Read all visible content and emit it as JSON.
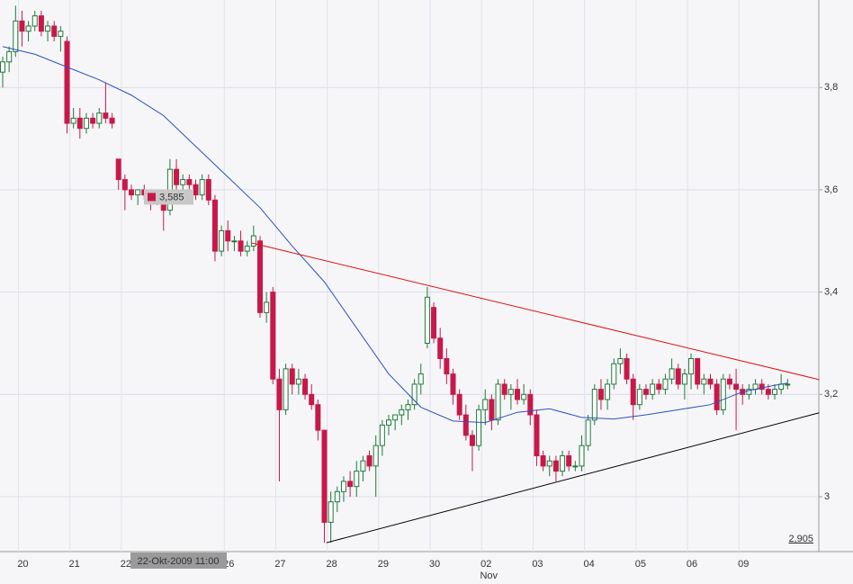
{
  "chart_data": {
    "type": "candlestick",
    "categories": [
      null,
      null,
      null,
      "20",
      null,
      null,
      null,
      null,
      null,
      null,
      null,
      "21",
      null,
      null,
      null,
      null,
      null,
      null,
      null,
      "22",
      null,
      null,
      null,
      null,
      null,
      null,
      null,
      null,
      null,
      null,
      null,
      null,
      null,
      null,
      null,
      "26",
      null,
      null,
      null,
      null,
      null,
      null,
      null,
      "27",
      null,
      null,
      null,
      null,
      null,
      null,
      null,
      "28",
      null,
      null,
      null,
      null,
      null,
      null,
      null,
      "29",
      null,
      null,
      null,
      null,
      null,
      null,
      null,
      "30",
      null,
      null,
      null,
      null,
      null,
      null,
      null,
      "02",
      null,
      null,
      null,
      null,
      null,
      null,
      null,
      "03",
      null,
      null,
      null,
      null,
      null,
      null,
      null,
      "04",
      null,
      null,
      null,
      null,
      null,
      null,
      null,
      "05",
      null,
      null,
      null,
      null,
      null,
      null,
      null,
      "06",
      null,
      null,
      null,
      null,
      null,
      null,
      null,
      "09",
      null,
      null,
      null,
      null,
      null,
      null,
      null
    ],
    "month_label": {
      "label": "Nov",
      "at": 75
    },
    "ohlc": [
      [
        3.83,
        3.86,
        3.8,
        3.85
      ],
      [
        3.85,
        3.88,
        3.83,
        3.87
      ],
      [
        3.87,
        3.96,
        3.86,
        3.93
      ],
      [
        3.93,
        3.95,
        3.88,
        3.91
      ],
      [
        3.91,
        3.93,
        3.89,
        3.92
      ],
      [
        3.92,
        3.95,
        3.91,
        3.94
      ],
      [
        3.94,
        3.95,
        3.9,
        3.91
      ],
      [
        3.91,
        3.93,
        3.89,
        3.92
      ],
      [
        3.92,
        3.93,
        3.89,
        3.9
      ],
      [
        3.9,
        3.92,
        3.87,
        3.91
      ],
      [
        3.89,
        3.9,
        3.71,
        3.73
      ],
      [
        3.73,
        3.76,
        3.72,
        3.74
      ],
      [
        3.74,
        3.76,
        3.7,
        3.72
      ],
      [
        3.72,
        3.75,
        3.71,
        3.74
      ],
      [
        3.74,
        3.75,
        3.72,
        3.73
      ],
      [
        3.73,
        3.76,
        3.72,
        3.75
      ],
      [
        3.75,
        3.81,
        3.73,
        3.74
      ],
      [
        3.74,
        3.75,
        3.72,
        3.73
      ],
      [
        3.66,
        3.66,
        3.6,
        3.62
      ],
      [
        3.62,
        3.63,
        3.56,
        3.6
      ],
      [
        3.6,
        3.61,
        3.58,
        3.59
      ],
      [
        3.59,
        3.6,
        3.57,
        3.6
      ],
      [
        3.6,
        3.61,
        3.58,
        3.59
      ],
      [
        3.59,
        3.6,
        3.56,
        3.58
      ],
      [
        3.58,
        3.59,
        3.57,
        3.58
      ],
      [
        3.58,
        3.59,
        3.52,
        3.56
      ],
      [
        3.56,
        3.66,
        3.55,
        3.64
      ],
      [
        3.64,
        3.66,
        3.6,
        3.61
      ],
      [
        3.61,
        3.63,
        3.59,
        3.62
      ],
      [
        3.62,
        3.63,
        3.6,
        3.61
      ],
      [
        3.61,
        3.62,
        3.58,
        3.59
      ],
      [
        3.59,
        3.63,
        3.58,
        3.62
      ],
      [
        3.62,
        3.63,
        3.57,
        3.58
      ],
      [
        3.58,
        3.59,
        3.46,
        3.48
      ],
      [
        3.48,
        3.53,
        3.47,
        3.52
      ],
      [
        3.52,
        3.54,
        3.48,
        3.5
      ],
      [
        3.5,
        3.51,
        3.48,
        3.5
      ],
      [
        3.5,
        3.52,
        3.47,
        3.48
      ],
      [
        3.48,
        3.5,
        3.47,
        3.49
      ],
      [
        3.49,
        3.53,
        3.48,
        3.51
      ],
      [
        3.5,
        3.51,
        3.35,
        3.36
      ],
      [
        3.36,
        3.4,
        3.34,
        3.38
      ],
      [
        3.4,
        3.41,
        3.22,
        3.23
      ],
      [
        3.23,
        3.25,
        3.03,
        3.17
      ],
      [
        3.17,
        3.26,
        3.16,
        3.25
      ],
      [
        3.25,
        3.26,
        3.2,
        3.22
      ],
      [
        3.22,
        3.25,
        3.2,
        3.23
      ],
      [
        3.23,
        3.24,
        3.19,
        3.2
      ],
      [
        3.2,
        3.22,
        3.17,
        3.18
      ],
      [
        3.18,
        3.19,
        3.11,
        3.13
      ],
      [
        3.13,
        3.13,
        2.91,
        2.95
      ],
      [
        2.95,
        3.01,
        2.91,
        2.99
      ],
      [
        2.99,
        3.02,
        2.97,
        3.01
      ],
      [
        3.01,
        3.04,
        2.99,
        3.03
      ],
      [
        3.03,
        3.05,
        3.0,
        3.02
      ],
      [
        3.02,
        3.07,
        3.0,
        3.05
      ],
      [
        3.05,
        3.08,
        3.03,
        3.07
      ],
      [
        3.08,
        3.09,
        3.05,
        3.06
      ],
      [
        3.06,
        3.12,
        3.0,
        3.1
      ],
      [
        3.1,
        3.15,
        3.08,
        3.14
      ],
      [
        3.14,
        3.16,
        3.12,
        3.15
      ],
      [
        3.15,
        3.16,
        3.13,
        3.16
      ],
      [
        3.16,
        3.18,
        3.14,
        3.17
      ],
      [
        3.17,
        3.19,
        3.15,
        3.18
      ],
      [
        3.18,
        3.23,
        3.17,
        3.22
      ],
      [
        3.22,
        3.26,
        3.2,
        3.24
      ],
      [
        3.3,
        3.41,
        3.29,
        3.39
      ],
      [
        3.37,
        3.38,
        3.3,
        3.31
      ],
      [
        3.31,
        3.33,
        3.25,
        3.27
      ],
      [
        3.27,
        3.29,
        3.22,
        3.24
      ],
      [
        3.24,
        3.25,
        3.18,
        3.2
      ],
      [
        3.2,
        3.21,
        3.15,
        3.16
      ],
      [
        3.16,
        3.18,
        3.11,
        3.12
      ],
      [
        3.12,
        3.13,
        3.05,
        3.1
      ],
      [
        3.1,
        3.18,
        3.09,
        3.17
      ],
      [
        3.17,
        3.21,
        3.14,
        3.19
      ],
      [
        3.19,
        3.2,
        3.13,
        3.15
      ],
      [
        3.15,
        3.23,
        3.14,
        3.22
      ],
      [
        3.22,
        3.23,
        3.19,
        3.2
      ],
      [
        3.2,
        3.22,
        3.17,
        3.21
      ],
      [
        3.21,
        3.23,
        3.18,
        3.19
      ],
      [
        3.19,
        3.22,
        3.18,
        3.2
      ],
      [
        3.2,
        3.21,
        3.14,
        3.16
      ],
      [
        3.16,
        3.17,
        3.06,
        3.08
      ],
      [
        3.08,
        3.09,
        3.05,
        3.06
      ],
      [
        3.06,
        3.08,
        3.04,
        3.07
      ],
      [
        3.07,
        3.08,
        3.03,
        3.05
      ],
      [
        3.05,
        3.09,
        3.04,
        3.08
      ],
      [
        3.08,
        3.09,
        3.05,
        3.06
      ],
      [
        3.06,
        3.07,
        3.05,
        3.06
      ],
      [
        3.06,
        3.12,
        3.05,
        3.1
      ],
      [
        3.1,
        3.16,
        3.09,
        3.15
      ],
      [
        3.15,
        3.22,
        3.14,
        3.21
      ],
      [
        3.21,
        3.23,
        3.17,
        3.19
      ],
      [
        3.19,
        3.23,
        3.17,
        3.22
      ],
      [
        3.22,
        3.27,
        3.21,
        3.26
      ],
      [
        3.26,
        3.29,
        3.24,
        3.27
      ],
      [
        3.27,
        3.28,
        3.22,
        3.23
      ],
      [
        3.23,
        3.24,
        3.15,
        3.18
      ],
      [
        3.18,
        3.22,
        3.17,
        3.21
      ],
      [
        3.21,
        3.22,
        3.19,
        3.2
      ],
      [
        3.2,
        3.23,
        3.19,
        3.22
      ],
      [
        3.22,
        3.23,
        3.2,
        3.21
      ],
      [
        3.21,
        3.24,
        3.2,
        3.23
      ],
      [
        3.23,
        3.27,
        3.22,
        3.25
      ],
      [
        3.25,
        3.26,
        3.21,
        3.22
      ],
      [
        3.22,
        3.25,
        3.19,
        3.24
      ],
      [
        3.24,
        3.28,
        3.21,
        3.27
      ],
      [
        3.27,
        3.27,
        3.21,
        3.22
      ],
      [
        3.22,
        3.24,
        3.2,
        3.23
      ],
      [
        3.23,
        3.24,
        3.21,
        3.22
      ],
      [
        3.22,
        3.23,
        3.16,
        3.17
      ],
      [
        3.17,
        3.24,
        3.16,
        3.23
      ],
      [
        3.23,
        3.24,
        3.21,
        3.22
      ],
      [
        3.22,
        3.25,
        3.13,
        3.21
      ],
      [
        3.21,
        3.22,
        3.18,
        3.2
      ],
      [
        3.2,
        3.22,
        3.19,
        3.21
      ],
      [
        3.21,
        3.23,
        3.2,
        3.22
      ],
      [
        3.22,
        3.23,
        3.2,
        3.21
      ],
      [
        3.21,
        3.22,
        3.19,
        3.2
      ],
      [
        3.2,
        3.22,
        3.19,
        3.21
      ],
      [
        3.21,
        3.24,
        3.2,
        3.22
      ],
      [
        3.22,
        3.23,
        3.21,
        3.22
      ]
    ],
    "up_color": "#1d7a3a",
    "down_color": "#c8184a",
    "moving_average": {
      "color": "#2a52be",
      "x": [
        0,
        5,
        10,
        15,
        20,
        25,
        30,
        35,
        40,
        45,
        50,
        55,
        60,
        65,
        70,
        75,
        80,
        85,
        90,
        95,
        100,
        105,
        110,
        115,
        120,
        122
      ],
      "values": [
        3.88,
        3.865,
        3.84,
        3.815,
        3.785,
        3.745,
        3.685,
        3.625,
        3.565,
        3.49,
        3.42,
        3.33,
        3.24,
        3.175,
        3.148,
        3.145,
        3.165,
        3.172,
        3.155,
        3.152,
        3.16,
        3.17,
        3.18,
        3.205,
        3.218,
        3.222
      ]
    },
    "trendlines": [
      {
        "color": "#e01010",
        "x": [
          38.7,
          126.9
        ],
        "values": [
          3.496,
          3.229
        ]
      },
      {
        "color": "#000000",
        "x": [
          50.3,
          126.9
        ],
        "values": [
          2.91,
          3.164
        ]
      }
    ],
    "crosshair": {
      "value": 3.585,
      "label": "3,585",
      "time_label": "22-Okt-2009 11:00"
    },
    "min_label": {
      "value": 2.905,
      "label": "2,905"
    },
    "ylim": [
      2.898,
      3.971
    ],
    "yticks": [
      3,
      {
        "value": 3.2,
        "label": "3,2"
      },
      {
        "value": 3.4,
        "label": "3,4"
      },
      {
        "value": 3.6,
        "label": "3,6"
      },
      {
        "value": 3.8,
        "label": "3,8"
      }
    ],
    "grid": true
  }
}
